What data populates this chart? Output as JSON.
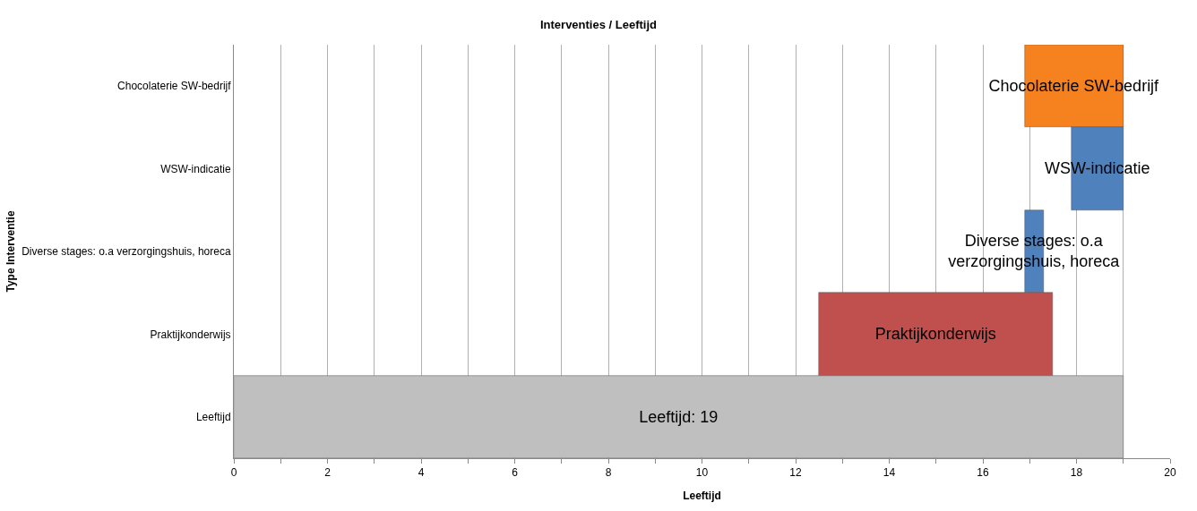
{
  "chart_data": {
    "type": "bar",
    "orientation": "horizontal",
    "title": "Interventies / Leeftijd",
    "xlabel": "Leeftijd",
    "ylabel": "Type Interventie",
    "categories": [
      "Chocolaterie SW-bedrijf",
      "WSW-indicatie",
      "Diverse stages: o.a verzorgingshuis, horeca",
      "Praktijkonderwijs",
      "Leeftijd"
    ],
    "base": [
      16.9,
      17.9,
      16.9,
      12.5,
      0
    ],
    "values": [
      2.1,
      1.1,
      0.4,
      5,
      19
    ],
    "colors": [
      "#f5821f",
      "#4f81bd",
      "#4f81bd",
      "#c0504d",
      "#bfbfbf"
    ],
    "xlim": [
      0,
      20
    ],
    "xticks": [
      0,
      {
        "value": 1,
        "label": null
      },
      2,
      {
        "value": 3,
        "label": null
      },
      4,
      {
        "value": 5,
        "label": null
      },
      6,
      {
        "value": 7,
        "label": null
      },
      8,
      {
        "value": 9,
        "label": null
      },
      10,
      {
        "value": 11,
        "label": null
      },
      12,
      {
        "value": 13,
        "label": null
      },
      14,
      {
        "value": 15,
        "label": null
      },
      16,
      {
        "value": 17,
        "label": null
      },
      18,
      {
        "value": 19,
        "label": null
      },
      20
    ],
    "grid": "x",
    "legend": false,
    "value_labels": [
      "Chocolaterie SW-bedrijf",
      "WSW-indicatie",
      "Diverse stages: o.a\nverzorgingshuis, horeca",
      "Praktijkonderwijs",
      "Leeftijd: 19"
    ]
  }
}
